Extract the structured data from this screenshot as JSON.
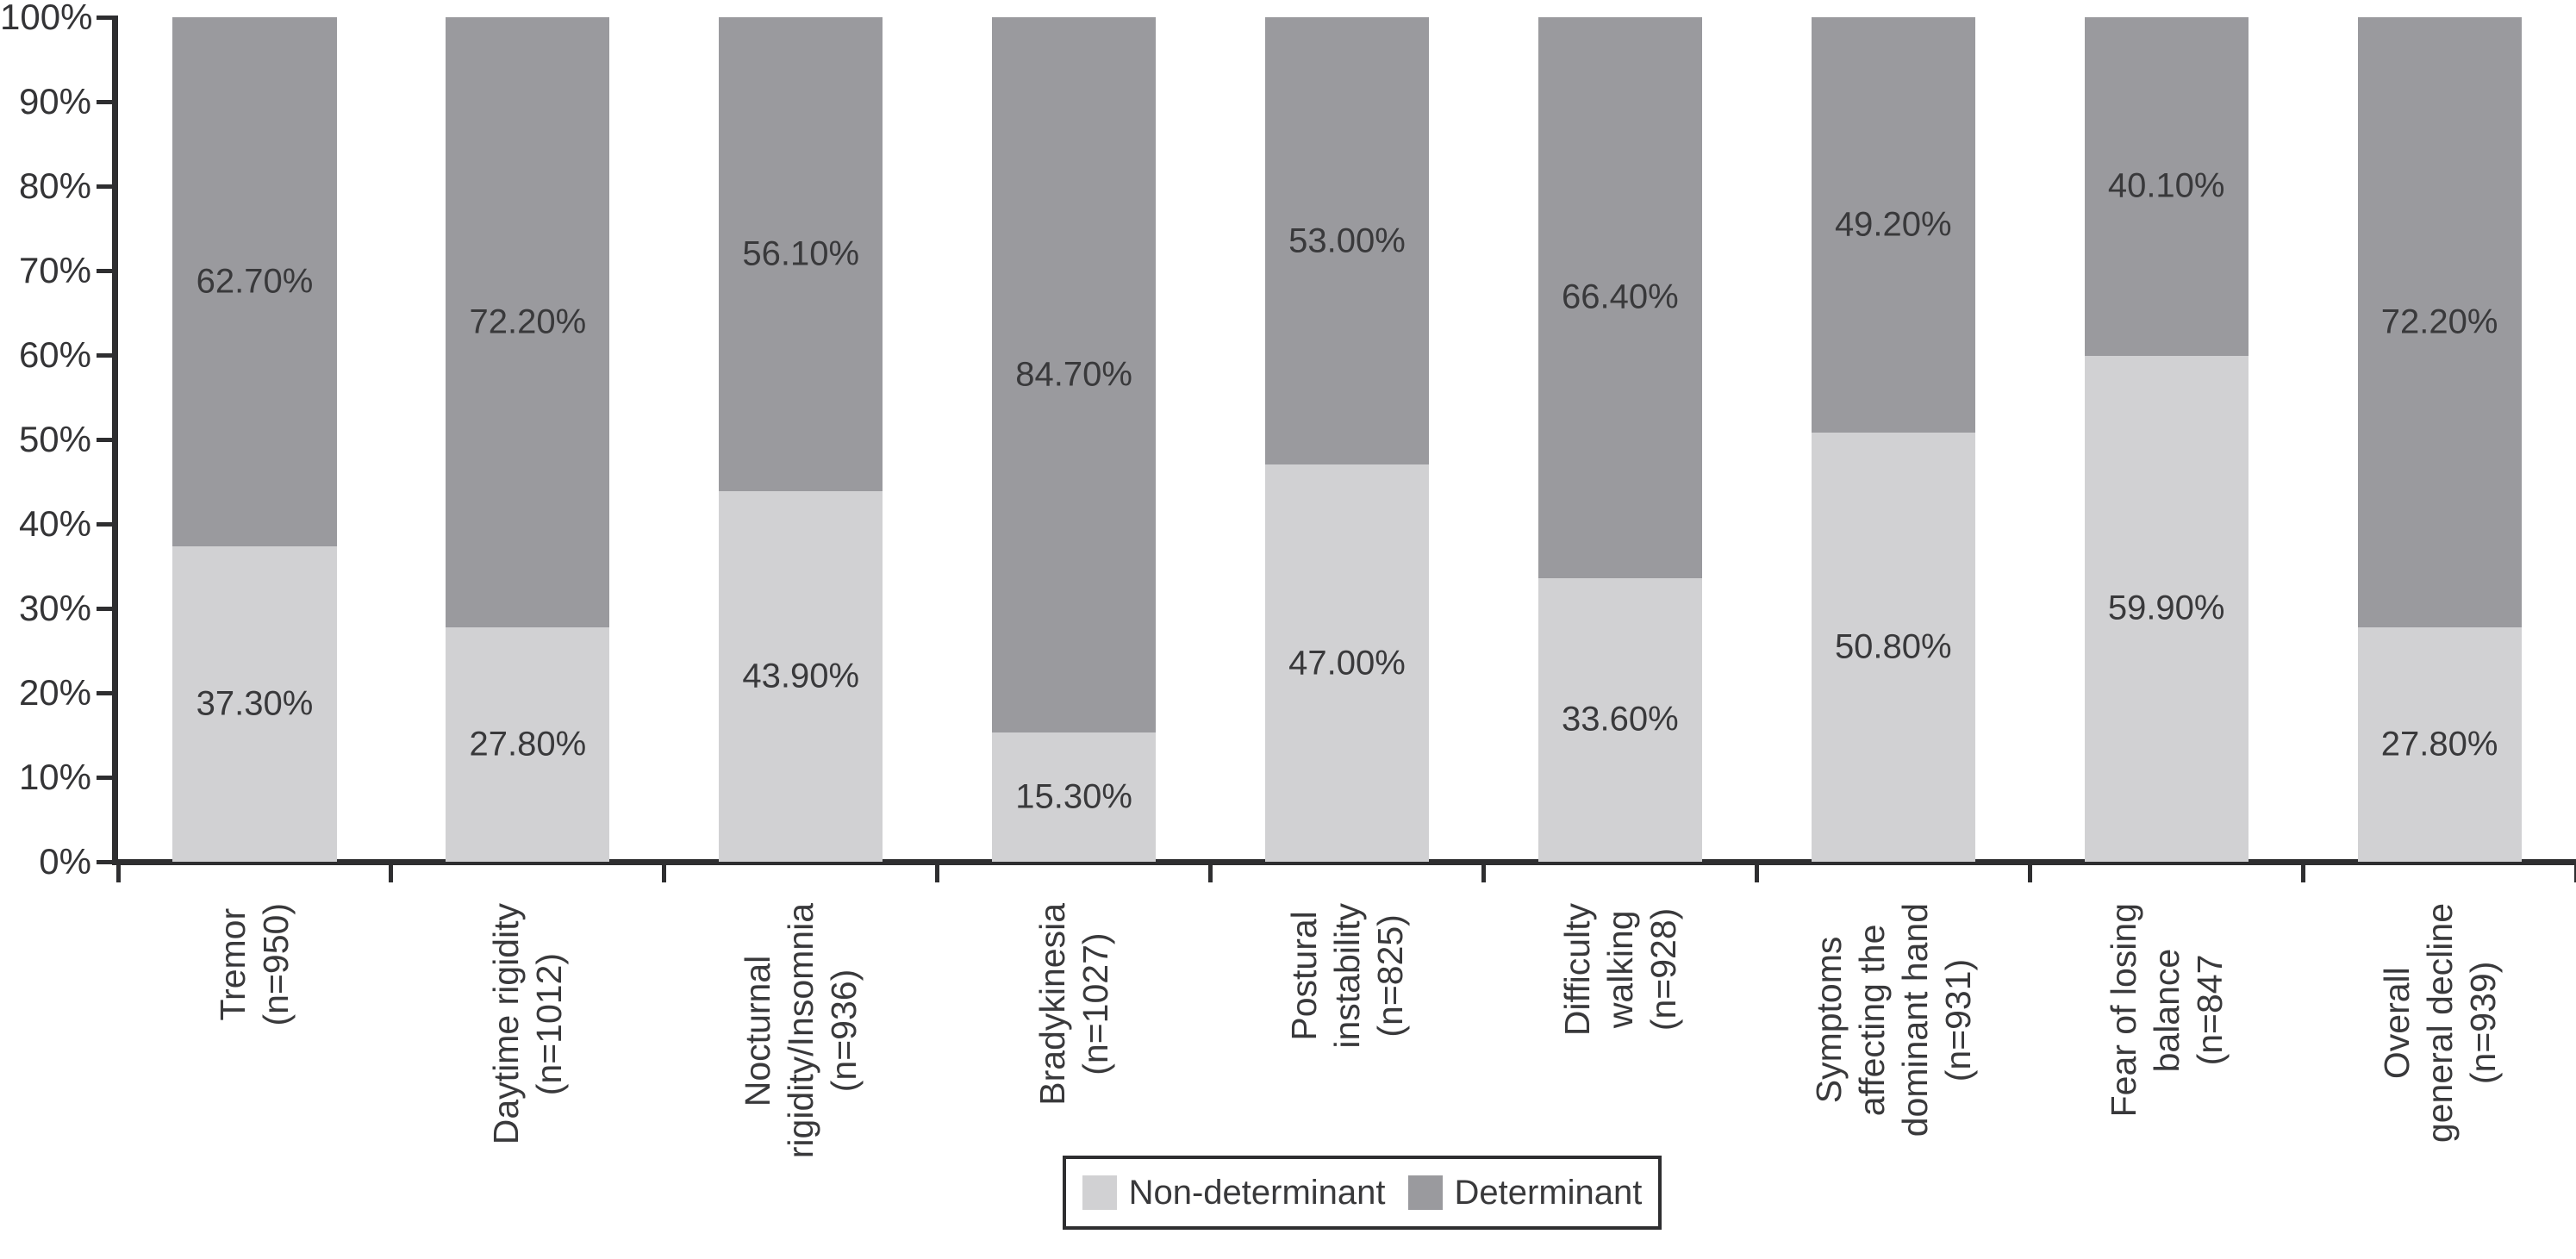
{
  "chart_data": {
    "type": "bar",
    "stacked": true,
    "orientation": "vertical",
    "title": "",
    "xlabel": "",
    "ylabel": "",
    "grid": false,
    "categories": [
      {
        "lines": [
          "Tremor",
          "(n=950)"
        ],
        "label": "Tremor (n=950)",
        "n": 950
      },
      {
        "lines": [
          "Daytime rigidity",
          "(n=1012)"
        ],
        "label": "Daytime rigidity (n=1012)",
        "n": 1012
      },
      {
        "lines": [
          "Nocturnal",
          "rigidity/Insomnia",
          "(n=936)"
        ],
        "label": "Nocturnal rigidity/Insomnia (n=936)",
        "n": 936
      },
      {
        "lines": [
          "Bradykinesia",
          "(n=1027)"
        ],
        "label": "Bradykinesia (n=1027)",
        "n": 1027
      },
      {
        "lines": [
          "Postural",
          "instability",
          "(n=825)"
        ],
        "label": "Postural instability (n=825)",
        "n": 825
      },
      {
        "lines": [
          "Difficulty",
          "walking",
          "(n=928)"
        ],
        "label": "Difficulty walking (n=928)",
        "n": 928
      },
      {
        "lines": [
          "Symptoms",
          "affecting the",
          "dominant hand",
          "(n=931)"
        ],
        "label": "Symptoms affecting the dominant hand (n=931)",
        "n": 931
      },
      {
        "lines": [
          "Fear of losing",
          "balance",
          "(n=847"
        ],
        "label": "Fear of losing balance (n=847",
        "n": 847
      },
      {
        "lines": [
          "Overall",
          "general decline",
          "(n=939)"
        ],
        "label": "Overall general decline (n=939)",
        "n": 939
      }
    ],
    "series": [
      {
        "name": "Non-determinant",
        "color": "#d1d1d3",
        "values": [
          37.3,
          27.8,
          43.9,
          15.3,
          47.0,
          33.6,
          50.8,
          59.9,
          27.8
        ],
        "value_labels": [
          "37.30%",
          "27.80%",
          "43.90%",
          "15.30%",
          "47.00%",
          "33.60%",
          "50.80%",
          "59.90%",
          "27.80%"
        ]
      },
      {
        "name": "Determinant",
        "color": "#9a9a9e",
        "values": [
          62.7,
          72.2,
          56.1,
          84.7,
          53.0,
          66.4,
          49.2,
          40.1,
          72.2
        ],
        "value_labels": [
          "62.70%",
          "72.20%",
          "56.10%",
          "84.70%",
          "53.00%",
          "66.40%",
          "49.20%",
          "40.10%",
          "72.20%"
        ]
      }
    ],
    "y_axis": {
      "min": 0,
      "max": 100,
      "step": 10,
      "tick_labels": [
        "0%",
        "10%",
        "20%",
        "30%",
        "40%",
        "50%",
        "60%",
        "70%",
        "80%",
        "90%",
        "100%"
      ]
    },
    "legend": {
      "position": "bottom-center",
      "entries": [
        "Non-determinant",
        "Determinant"
      ]
    }
  },
  "colors": {
    "axis": "#2e2e30",
    "text": "#39393b",
    "background": "#ffffff",
    "non_determinant_fill": "#d1d1d3",
    "determinant_fill": "#9a9a9e"
  }
}
